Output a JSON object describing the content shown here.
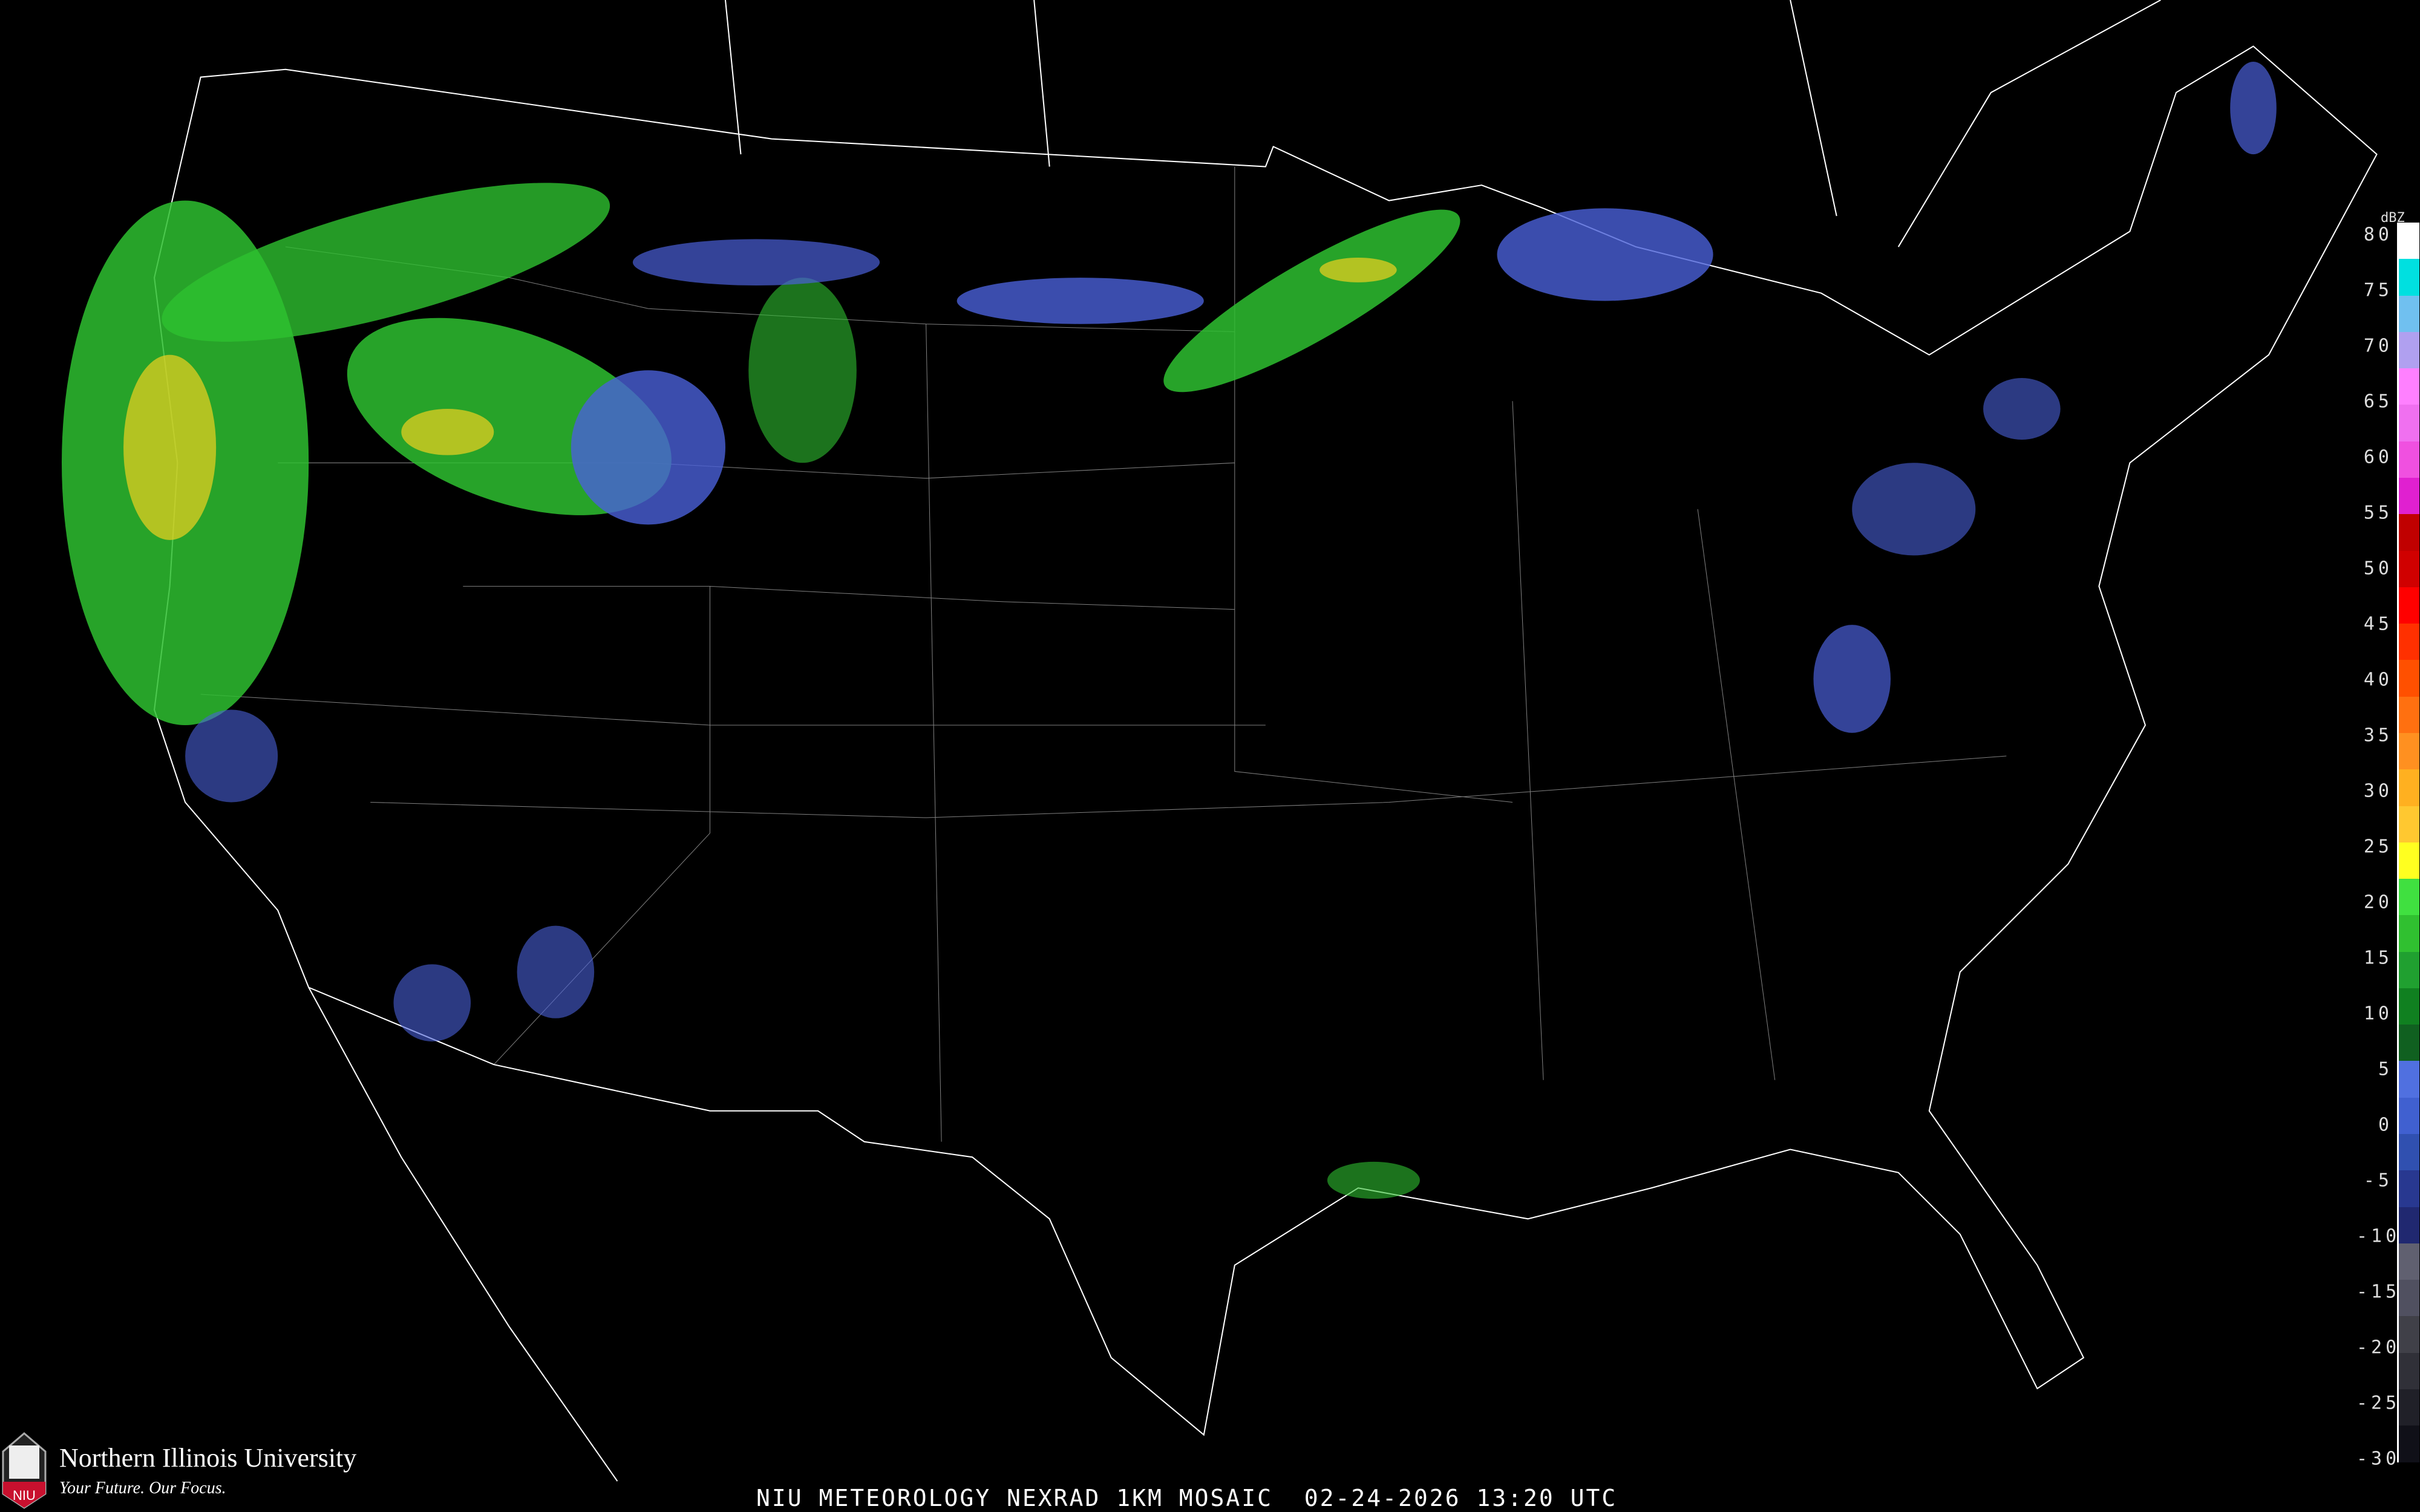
{
  "map": {
    "title": "NIU METEOROLOGY NEXRAD 1KM MOSAIC",
    "date": "02-24-2026",
    "time": "13:20 UTC",
    "caption": "NIU METEOROLOGY NEXRAD 1KM MOSAIC  02-24-2026 13:20 UTC"
  },
  "logo": {
    "name": "Northern Illinois University",
    "tagline": "Your Future. Our Focus.",
    "mark": "NIU",
    "color": "#c8102e"
  },
  "legend": {
    "unit": "dBZ",
    "labels": [
      "80",
      "75",
      "70",
      "65",
      "60",
      "55",
      "50",
      "45",
      "40",
      "35",
      "30",
      "25",
      "20",
      "15",
      "10",
      "5",
      "0",
      "-5",
      "-10",
      "-15",
      "-20",
      "-25",
      "-30"
    ],
    "colors": [
      "#ffffff",
      "#00e0e0",
      "#70c0f0",
      "#b0a0f0",
      "#ff80ff",
      "#f070f0",
      "#f050e0",
      "#e020d0",
      "#c00000",
      "#d00000",
      "#ff0000",
      "#ff3000",
      "#ff5000",
      "#ff7010",
      "#ff9020",
      "#ffb020",
      "#ffc830",
      "#ffff20",
      "#40e040",
      "#30c030",
      "#20a030",
      "#108020",
      "#106020",
      "#5070e0",
      "#4060d0",
      "#3050b0",
      "#283890",
      "#202870",
      "#606070",
      "#505060",
      "#404048",
      "#303038",
      "#202028",
      "#101018"
    ]
  },
  "radar_colors": {
    "light": "#4a60d8",
    "moderate": "#2ec030",
    "heavy": "#f0d020",
    "core": "#ff8000",
    "outline": "#ffffff",
    "roads": "#a05020"
  }
}
